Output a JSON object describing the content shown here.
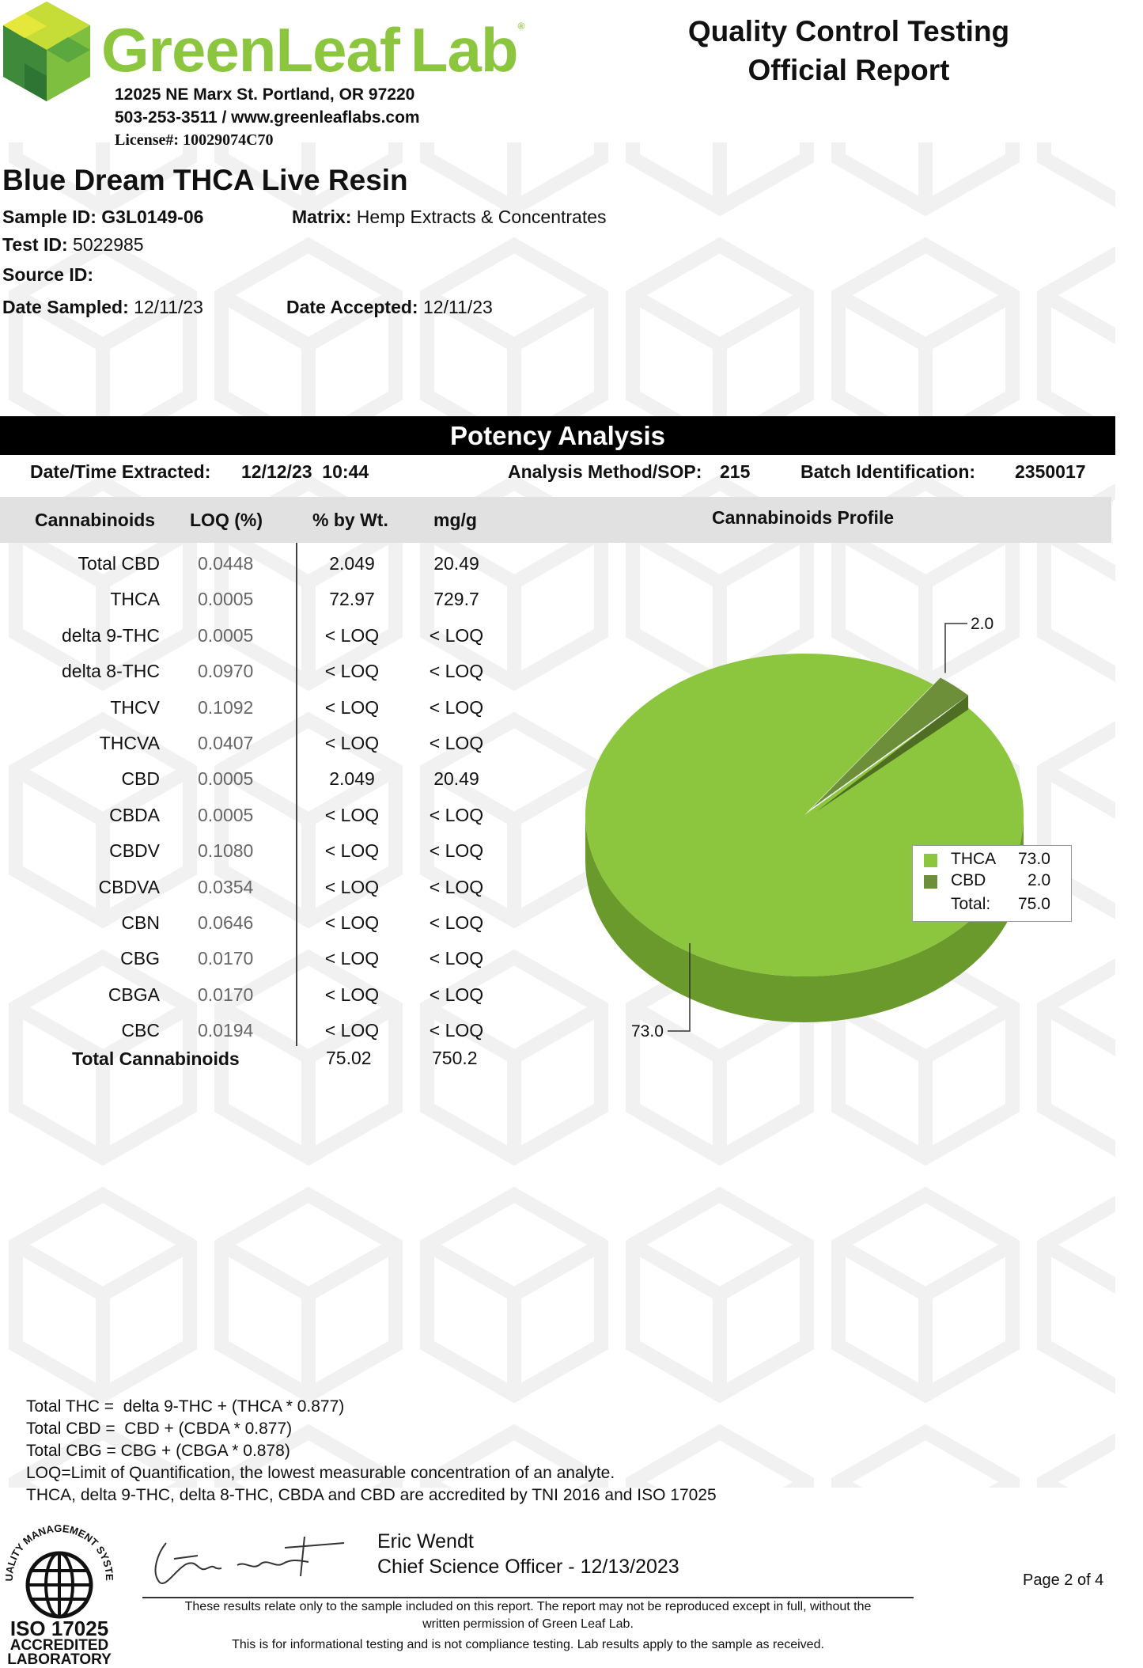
{
  "lab": {
    "name": "GreenLeaf Lab",
    "name_part1": "Green",
    "name_part2": "Leaf",
    "name_part3": "Lab",
    "registered_mark": "®",
    "address": "12025 NE Marx St. Portland, OR 97220",
    "contact": "503-253-3511 / www.greenleaflabs.com",
    "license": "License#: 10029074C70",
    "brand_color": "#8cc63f",
    "logo_icon": "hexagon-cube-logo-icon"
  },
  "report": {
    "title_line1": "Quality Control Testing",
    "title_line2": "Official Report"
  },
  "sample": {
    "product_name": "Blue Dream THCA Live Resin",
    "sample_id_label": "Sample ID:",
    "sample_id": "G3L0149-06",
    "matrix_label": "Matrix:",
    "matrix": "Hemp Extracts & Concentrates",
    "test_id_label": "Test ID:",
    "test_id": "5022985",
    "source_id_label": "Source ID:",
    "source_id": "",
    "date_sampled_label": "Date Sampled:",
    "date_sampled": "12/11/23",
    "date_accepted_label": "Date Accepted:",
    "date_accepted": "12/11/23"
  },
  "potency": {
    "section_title": "Potency Analysis",
    "extracted_label": "Date/Time Extracted:",
    "extracted_value": "12/12/23  10:44",
    "method_label": "Analysis Method/SOP:",
    "method_value": "215",
    "batch_label": "Batch Identification:",
    "batch_value": "2350017",
    "columns": [
      "Cannabinoids",
      "LOQ (%)",
      "% by Wt.",
      "mg/g"
    ],
    "profile_title": "Cannabinoids Profile",
    "rows": [
      {
        "name": "Total CBD",
        "loq": "0.0448",
        "pct": "2.049",
        "mg": "20.49"
      },
      {
        "name": "THCA",
        "loq": "0.0005",
        "pct": "72.97",
        "mg": "729.7"
      },
      {
        "name": "delta 9-THC",
        "loq": "0.0005",
        "pct": "< LOQ",
        "mg": "< LOQ"
      },
      {
        "name": "delta 8-THC",
        "loq": "0.0970",
        "pct": "< LOQ",
        "mg": "< LOQ"
      },
      {
        "name": "THCV",
        "loq": "0.1092",
        "pct": "< LOQ",
        "mg": "< LOQ"
      },
      {
        "name": "THCVA",
        "loq": "0.0407",
        "pct": "< LOQ",
        "mg": "< LOQ"
      },
      {
        "name": "CBD",
        "loq": "0.0005",
        "pct": "2.049",
        "mg": "20.49"
      },
      {
        "name": "CBDA",
        "loq": "0.0005",
        "pct": "< LOQ",
        "mg": "< LOQ"
      },
      {
        "name": "CBDV",
        "loq": "0.1080",
        "pct": "< LOQ",
        "mg": "< LOQ"
      },
      {
        "name": "CBDVA",
        "loq": "0.0354",
        "pct": "< LOQ",
        "mg": "< LOQ"
      },
      {
        "name": "CBN",
        "loq": "0.0646",
        "pct": "< LOQ",
        "mg": "< LOQ"
      },
      {
        "name": "CBG",
        "loq": "0.0170",
        "pct": "< LOQ",
        "mg": "< LOQ"
      },
      {
        "name": "CBGA",
        "loq": "0.0170",
        "pct": "< LOQ",
        "mg": "< LOQ"
      },
      {
        "name": "CBC",
        "loq": "0.0194",
        "pct": "< LOQ",
        "mg": "< LOQ"
      }
    ],
    "total_label": "Total Cannabinoids",
    "total_pct": "75.02",
    "total_mg": "750.2"
  },
  "chart_data": {
    "type": "pie",
    "title": "Cannabinoids Profile",
    "categories": [
      "THCA",
      "CBD"
    ],
    "values": [
      73.0,
      2.0
    ],
    "value_labels": [
      "73.0",
      "2.0"
    ],
    "colors": [
      "#8cc63f",
      "#6e8f3a"
    ],
    "legend": {
      "position": "right",
      "entries": [
        {
          "label": "THCA",
          "value": "73.0"
        },
        {
          "label": "CBD",
          "value": "2.0"
        }
      ],
      "total_label": "Total:",
      "total_value": "75.0"
    },
    "style": "3d"
  },
  "notes": [
    "Total THC =  delta 9-THC + (THCA * 0.877)",
    "Total CBD =  CBD + (CBDA * 0.877)",
    "Total CBG = CBG + (CBGA * 0.878)",
    "LOQ=Limit of Quantification, the lowest measurable concentration of an analyte.",
    "THCA, delta 9-THC, delta 8-THC, CBDA and CBD are accredited by TNI 2016 and ISO 17025"
  ],
  "signature": {
    "name": "Eric Wendt",
    "title": "Chief Science Officer - 12/13/2023"
  },
  "disclaimer": {
    "line1": "These results relate only to the sample included on this report. The report may not be reproduced except in full, without the",
    "line2": "written permission of Green Leaf Lab.",
    "line3": "This is for informational testing and is not compliance testing. Lab results apply to the sample as received."
  },
  "page": "Page 2 of 4",
  "seal": {
    "ring_text": "QUALITY MANAGEMENT SYSTEM",
    "line1": "ISO 17025",
    "line2": "ACCREDITED",
    "line3": "LABORATORY"
  }
}
